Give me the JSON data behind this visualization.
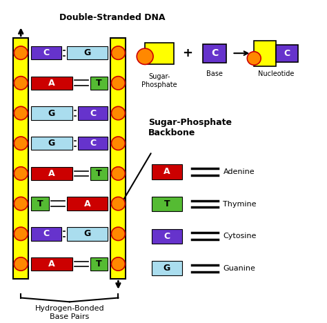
{
  "bg_color": "#ffffff",
  "title": "Double-Stranded DNA",
  "strand_color": "#ffff00",
  "strand_edge": "#000000",
  "phosphate_fill": "#ff8800",
  "phosphate_edge": "#cc0000",
  "base_rows": [
    {
      "left_base": "C",
      "left_color": "#6633cc",
      "left_wide": false,
      "right_base": "G",
      "right_color": "#aaddee",
      "right_wide": true
    },
    {
      "left_base": "A",
      "left_color": "#cc0000",
      "left_wide": true,
      "right_base": "T",
      "right_color": "#55bb33",
      "right_wide": false
    },
    {
      "left_base": "G",
      "left_color": "#aaddee",
      "left_wide": true,
      "right_base": "C",
      "right_color": "#6633cc",
      "right_wide": false
    },
    {
      "left_base": "G",
      "left_color": "#aaddee",
      "left_wide": true,
      "right_base": "C",
      "right_color": "#6633cc",
      "right_wide": false
    },
    {
      "left_base": "A",
      "left_color": "#cc0000",
      "left_wide": true,
      "right_base": "T",
      "right_color": "#55bb33",
      "right_wide": false
    },
    {
      "left_base": "T",
      "left_color": "#55bb33",
      "left_wide": false,
      "right_base": "A",
      "right_color": "#cc0000",
      "right_wide": true
    },
    {
      "left_base": "C",
      "left_color": "#6633cc",
      "left_wide": false,
      "right_base": "G",
      "right_color": "#aaddee",
      "right_wide": true
    },
    {
      "left_base": "A",
      "left_color": "#cc0000",
      "left_wide": true,
      "right_base": "T",
      "right_color": "#55bb33",
      "right_wide": false
    }
  ],
  "legend_items": [
    {
      "label": "A",
      "color": "#cc0000",
      "name": "Adenine",
      "text_white": true
    },
    {
      "label": "T",
      "color": "#55bb33",
      "name": "Thymine",
      "text_white": false
    },
    {
      "label": "C",
      "color": "#6633cc",
      "name": "Cytosine",
      "text_white": true
    },
    {
      "label": "G",
      "color": "#aaddee",
      "name": "Guanine",
      "text_white": false
    }
  ]
}
